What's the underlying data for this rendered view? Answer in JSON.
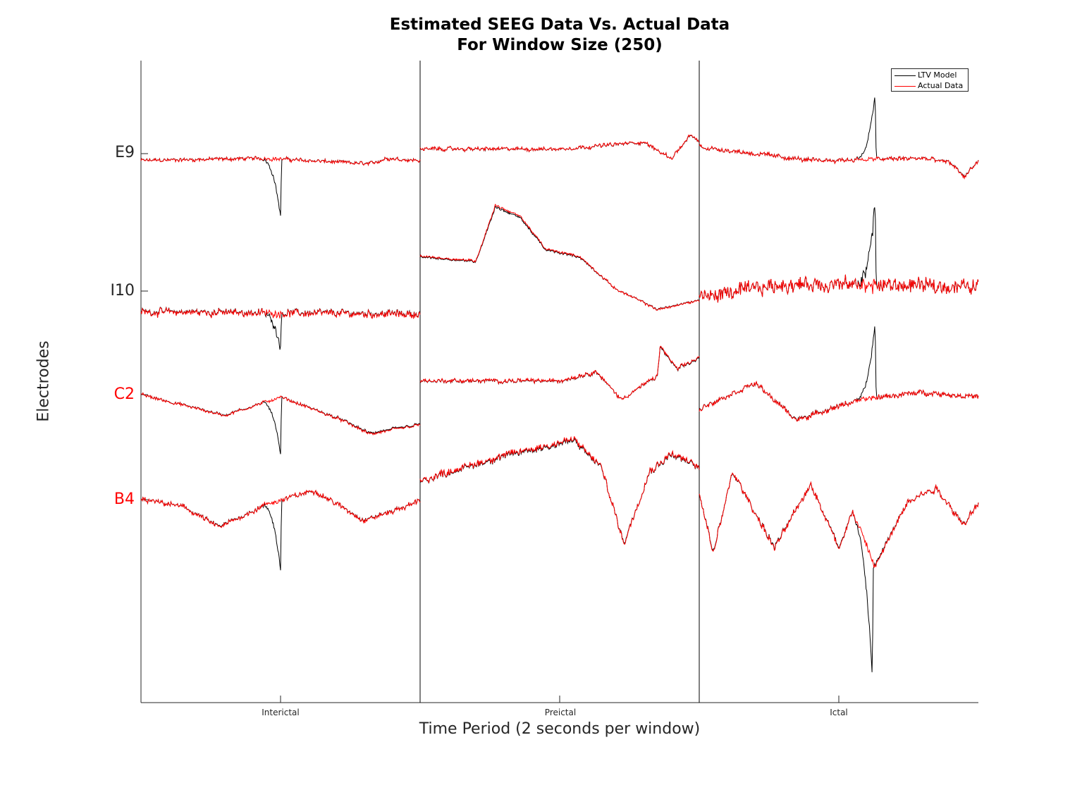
{
  "chart_data": {
    "type": "line",
    "title": "Estimated SEEG Data Vs. Actual Data",
    "subtitle": "For Window Size (250)",
    "xlabel": "Time Period (2 seconds per window)",
    "ylabel": "Electrodes",
    "x_tick_labels": [
      "Interictal",
      "Preictal",
      "Ictal"
    ],
    "y_tick_labels": [
      {
        "label": "E9",
        "color": "#262626"
      },
      {
        "label": "I10",
        "color": "#262626"
      },
      {
        "label": "C2",
        "color": "#ff0000"
      },
      {
        "label": "B4",
        "color": "#ff0000"
      }
    ],
    "legend": {
      "position": "top-right",
      "entries": [
        {
          "name": "LTV Model",
          "color": "#000000"
        },
        {
          "name": "Actual Data",
          "color": "#ff0000"
        }
      ]
    },
    "grid": false,
    "series": [
      {
        "name": "LTV Model",
        "color": "#000000"
      },
      {
        "name": "Actual Data",
        "color": "#ff0000"
      }
    ],
    "windows": [
      {
        "label": "Interictal",
        "channels": [
          {
            "electrode": "E9",
            "baseline": -0.3,
            "noise": 0.18,
            "trend": [
              [
                0,
                0
              ],
              [
                0.45,
                0.1
              ],
              [
                0.82,
                -0.15
              ],
              [
                0.88,
                0.1
              ],
              [
                1,
                0
              ]
            ],
            "model_deviation": {
              "at": 0.5,
              "value": -2.5
            }
          },
          {
            "electrode": "I10",
            "baseline": -0.9,
            "noise": 0.35,
            "trend": [
              [
                0,
                0
              ],
              [
                1,
                -0.1
              ]
            ],
            "model_deviation": {
              "at": 0.5,
              "value": -1.5
            }
          },
          {
            "electrode": "C2",
            "baseline": -0.5,
            "noise": 0.15,
            "trend": [
              [
                0,
                0.5
              ],
              [
                0.3,
                -0.4
              ],
              [
                0.45,
                0.2
              ],
              [
                0.5,
                0.4
              ],
              [
                0.72,
                -0.6
              ],
              [
                0.82,
                -1.2
              ],
              [
                1,
                -0.8
              ]
            ],
            "model_deviation": {
              "at": 0.5,
              "value": -2.5
            }
          },
          {
            "electrode": "B4",
            "baseline": 0.0,
            "noise": 0.25,
            "trend": [
              [
                0,
                0
              ],
              [
                0.15,
                -0.3
              ],
              [
                0.28,
                -1.2
              ],
              [
                0.45,
                -0.2
              ],
              [
                0.62,
                0.4
              ],
              [
                0.8,
                -0.9
              ],
              [
                0.95,
                -0.3
              ],
              [
                1,
                0
              ]
            ],
            "model_deviation": {
              "at": 0.5,
              "value": -3.0
            }
          }
        ]
      },
      {
        "label": "Preictal",
        "channels": [
          {
            "electrode": "E9",
            "baseline": 0.2,
            "noise": 0.18,
            "trend": [
              [
                0,
                0
              ],
              [
                0.5,
                0
              ],
              [
                0.8,
                0.3
              ],
              [
                0.9,
                -0.4
              ],
              [
                0.97,
                0.6
              ],
              [
                1,
                0.3
              ]
            ],
            "model_deviation": null
          },
          {
            "electrode": "I10",
            "baseline": 1.5,
            "noise": 0.12,
            "trend": [
              [
                0,
                0
              ],
              [
                0.2,
                -0.2
              ],
              [
                0.27,
                2.2
              ],
              [
                0.36,
                1.7
              ],
              [
                0.45,
                0.3
              ],
              [
                0.57,
                0
              ],
              [
                0.7,
                -1.4
              ],
              [
                0.85,
                -2.3
              ],
              [
                1,
                -1.9
              ]
            ],
            "model_deviation": null
          },
          {
            "electrode": "C2",
            "baseline": 0.6,
            "noise": 0.2,
            "trend": [
              [
                0,
                0
              ],
              [
                0.5,
                0
              ],
              [
                0.63,
                0.4
              ],
              [
                0.72,
                -0.8
              ],
              [
                0.85,
                0.2
              ],
              [
                0.86,
                1.5
              ],
              [
                0.92,
                0.5
              ],
              [
                1,
                1.0
              ]
            ],
            "model_deviation": null
          },
          {
            "electrode": "B4",
            "baseline": 0.4,
            "noise": 0.35,
            "trend": [
              [
                0,
                0.4
              ],
              [
                0.1,
                0.8
              ],
              [
                0.3,
                1.5
              ],
              [
                0.55,
                2.2
              ],
              [
                0.65,
                1.0
              ],
              [
                0.73,
                -2.3
              ],
              [
                0.82,
                0.8
              ],
              [
                0.9,
                1.6
              ],
              [
                1,
                1.0
              ]
            ],
            "model_deviation": null
          }
        ]
      },
      {
        "label": "Ictal",
        "channels": [
          {
            "electrode": "E9",
            "baseline": 0.0,
            "noise": 0.22,
            "trend": [
              [
                0,
                0.3
              ],
              [
                0.4,
                -0.3
              ],
              [
                0.8,
                -0.2
              ],
              [
                0.9,
                -0.4
              ],
              [
                0.95,
                -1.0
              ],
              [
                1,
                -0.3
              ]
            ],
            "model_deviation": {
              "at": 0.63,
              "value": 2.8
            }
          },
          {
            "electrode": "I10",
            "baseline": 0.0,
            "noise": 0.7,
            "trend": [
              [
                0,
                -0.3
              ],
              [
                0.3,
                0.3
              ],
              [
                1,
                0.2
              ]
            ],
            "model_deviation": {
              "at": 0.63,
              "value": 3.5
            }
          },
          {
            "electrode": "C2",
            "baseline": -0.3,
            "noise": 0.25,
            "trend": [
              [
                0,
                -0.3
              ],
              [
                0.2,
                0.8
              ],
              [
                0.35,
                -0.8
              ],
              [
                0.55,
                0
              ],
              [
                0.65,
                0.2
              ],
              [
                0.8,
                0.4
              ],
              [
                1,
                0.2
              ]
            ],
            "model_deviation": {
              "at": 0.63,
              "value": 3.2
            }
          },
          {
            "electrode": "B4",
            "baseline": -0.3,
            "noise": 0.35,
            "trend": [
              [
                0,
                0.5
              ],
              [
                0.05,
                -2.0
              ],
              [
                0.12,
                1.5
              ],
              [
                0.27,
                -1.8
              ],
              [
                0.4,
                1.0
              ],
              [
                0.5,
                -1.8
              ],
              [
                0.55,
                -0.2
              ],
              [
                0.63,
                -2.6
              ],
              [
                0.75,
                0.3
              ],
              [
                0.85,
                0.8
              ],
              [
                0.95,
                -0.8
              ],
              [
                1,
                0.2
              ]
            ],
            "model_deviation": {
              "at": 0.62,
              "value": -5.0
            }
          }
        ]
      }
    ]
  }
}
